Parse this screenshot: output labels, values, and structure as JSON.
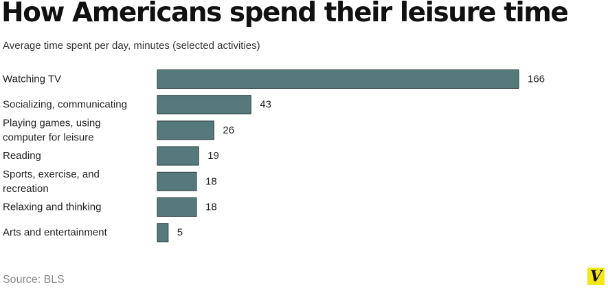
{
  "header": {
    "title": "How Americans spend their leisure time",
    "subtitle": "Average time spent per day, minutes (selected activities)"
  },
  "footer": {
    "source": "Source: BLS",
    "logo_letter": "V",
    "logo_color": "#f5e619"
  },
  "colors": {
    "bar_fill": "#567a7c",
    "bar_stroke": "#2b3b3c"
  },
  "chart_data": {
    "type": "bar",
    "orientation": "horizontal",
    "title": "How Americans spend their leisure time",
    "subtitle": "Average time spent per day, minutes (selected activities)",
    "categories": [
      [
        "Watching TV"
      ],
      [
        "Socializing, communicating"
      ],
      [
        "Playing games, using",
        "computer for leisure"
      ],
      [
        "Reading"
      ],
      [
        "Sports, exercise, and",
        "recreation"
      ],
      [
        "Relaxing and thinking"
      ],
      [
        "Arts and entertainment"
      ]
    ],
    "values": [
      166,
      43,
      26,
      19,
      18,
      18,
      5
    ],
    "xlim": [
      0,
      166
    ],
    "grid": false,
    "legend": "none",
    "data_labels": true
  }
}
